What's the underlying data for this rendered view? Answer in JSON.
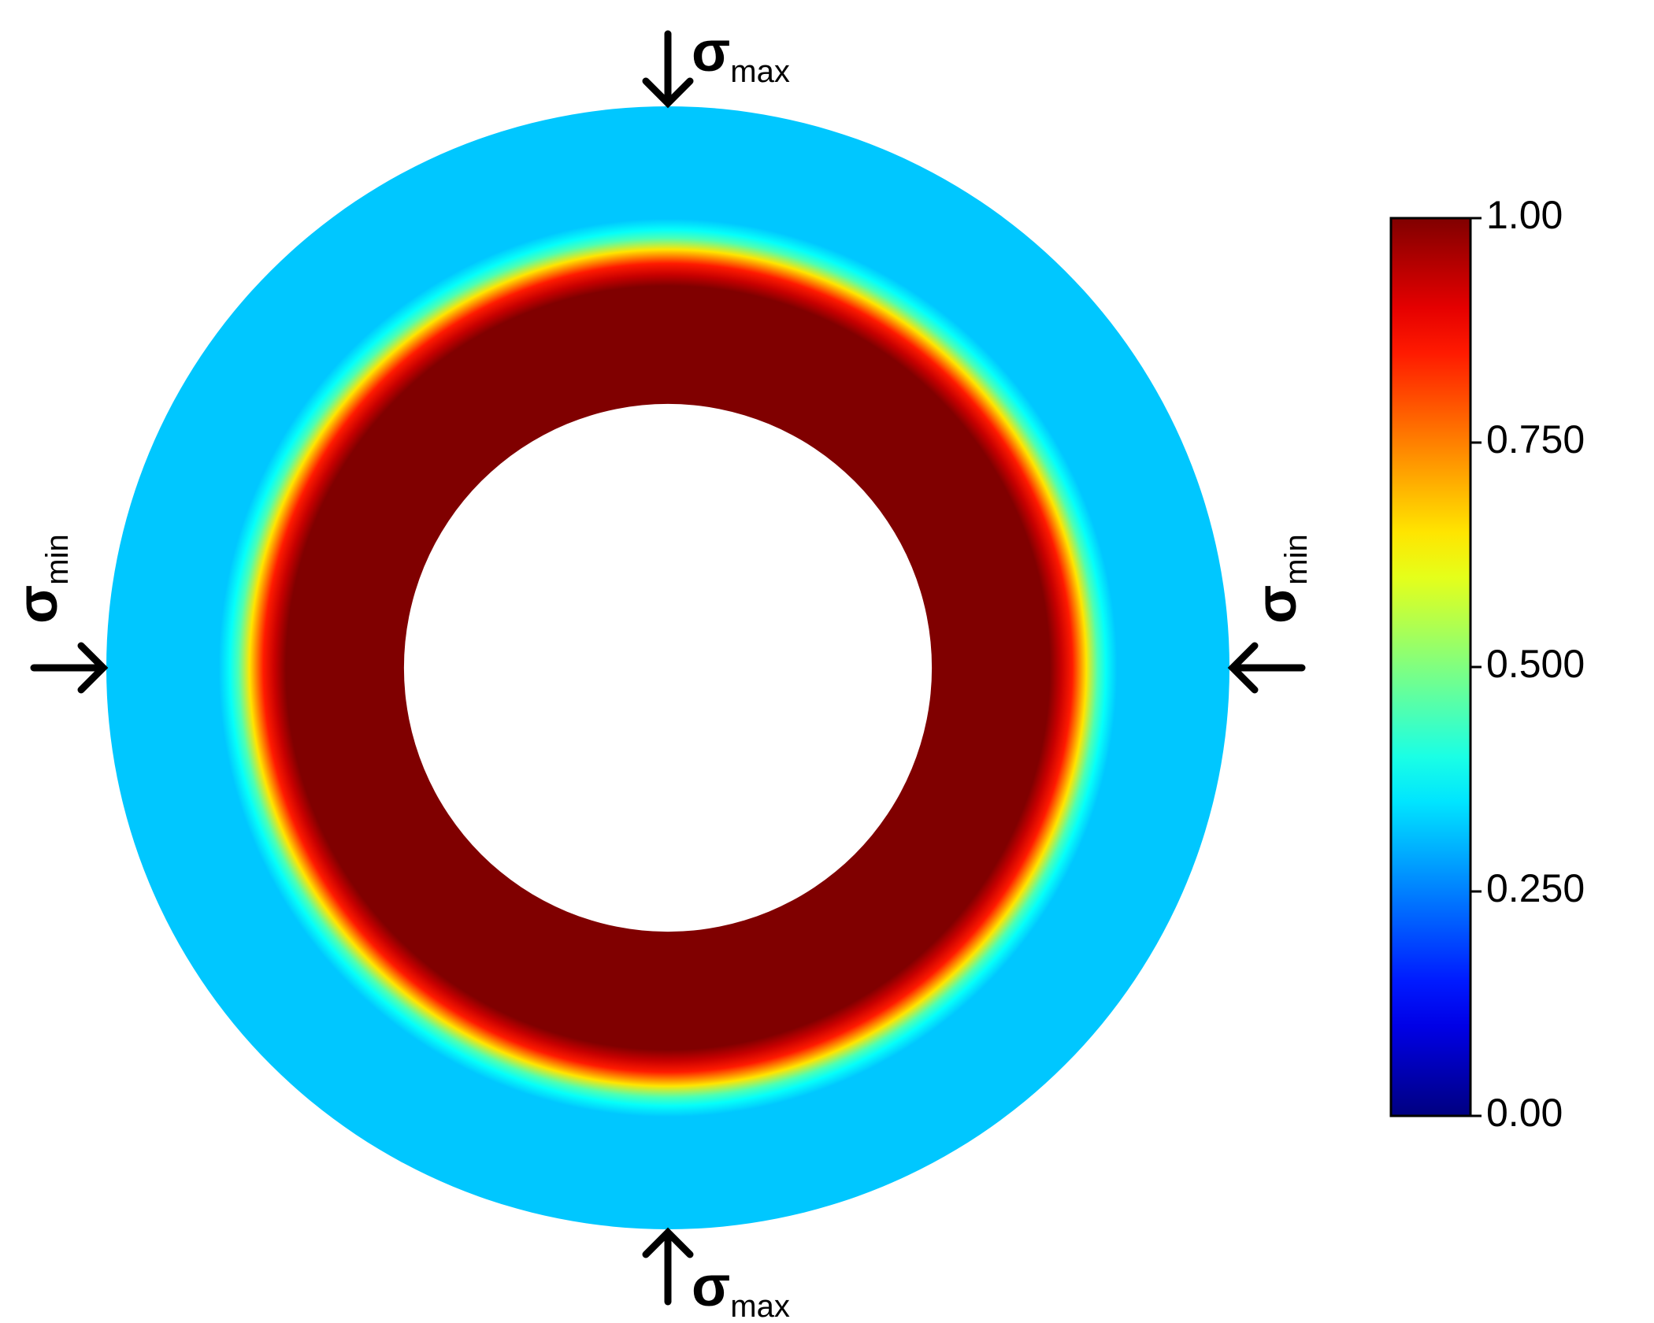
{
  "chart_data": {
    "type": "radial-contour",
    "colormap": "jet",
    "profile": {
      "r": [
        0.47,
        0.68,
        0.7,
        0.72,
        0.745,
        0.765,
        0.78,
        0.8,
        1.0
      ],
      "values": [
        1.0,
        1.0,
        0.93,
        0.85,
        0.65,
        0.45,
        0.38,
        0.32,
        0.32
      ]
    },
    "clim": [
      0,
      1
    ],
    "cticks": [
      {
        "value": 0,
        "label": "0.00"
      },
      {
        "value": 0.25,
        "label": "0.250"
      },
      {
        "value": 0.5,
        "label": "0.500"
      },
      {
        "value": 0.75,
        "label": "0.750"
      },
      {
        "value": 1,
        "label": "1.00"
      }
    ],
    "annotations": [
      {
        "symbol": "σ",
        "subscript": "max"
      },
      {
        "symbol": "σ",
        "subscript": "max"
      },
      {
        "symbol": "σ",
        "subscript": "min"
      },
      {
        "symbol": "σ",
        "subscript": "min"
      }
    ]
  }
}
